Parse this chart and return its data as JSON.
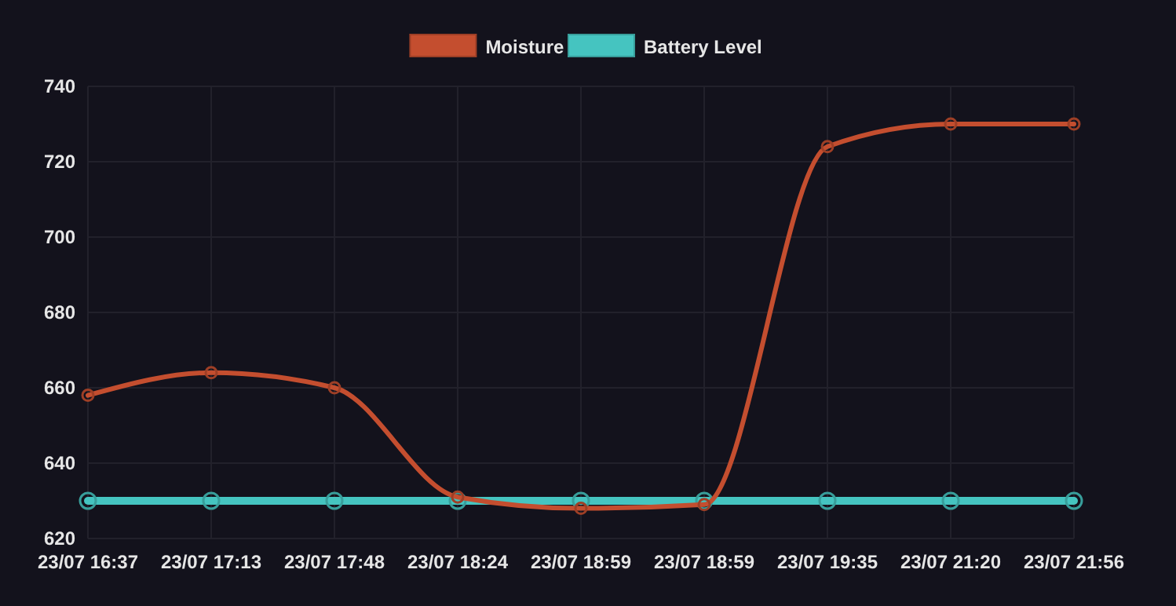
{
  "chart_data": {
    "type": "line",
    "categories": [
      "23/07 16:37",
      "23/07 17:13",
      "23/07 17:48",
      "23/07 18:24",
      "23/07 18:59",
      "23/07 18:59",
      "23/07 19:35",
      "23/07 21:20",
      "23/07 21:56"
    ],
    "series": [
      {
        "name": "Moisture",
        "color": "#c44e2f",
        "values": [
          658,
          664,
          660,
          631,
          628,
          629,
          724,
          730,
          730
        ]
      },
      {
        "name": "Battery Level",
        "color": "#45c4c0",
        "values": [
          630,
          630,
          630,
          630,
          630,
          630,
          630,
          630,
          630
        ]
      }
    ],
    "ylim": [
      620,
      740
    ],
    "yticks": [
      620,
      640,
      660,
      680,
      700,
      720,
      740
    ],
    "grid": true,
    "legend": "top",
    "marker": "circle",
    "line_style": "solid"
  }
}
